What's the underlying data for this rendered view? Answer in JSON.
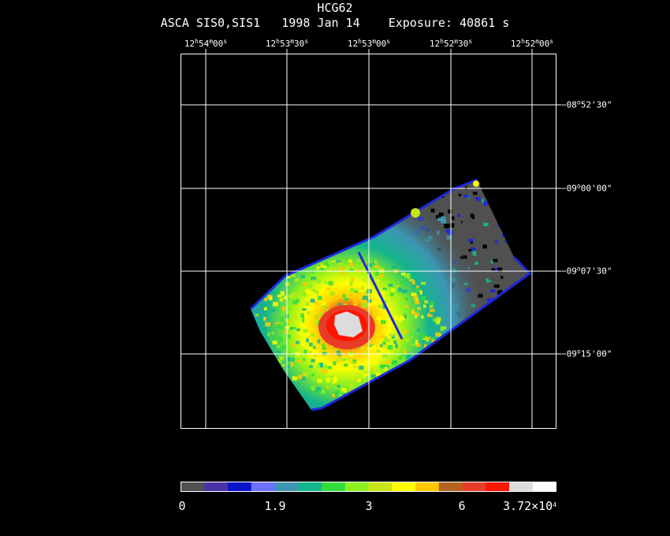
{
  "title": "HCG62",
  "subtitle": "ASCA SIS0,SIS1   1998 Jan 14    Exposure: 40861 s",
  "ra_axis": [
    {
      "h": "12",
      "hs": "h",
      "m": "54",
      "ms": "m",
      "s": "00",
      "ss": "s"
    },
    {
      "h": "12",
      "hs": "h",
      "m": "53",
      "ms": "m",
      "s": "30",
      "ss": "s"
    },
    {
      "h": "12",
      "hs": "h",
      "m": "53",
      "ms": "m",
      "s": "00",
      "ss": "s"
    },
    {
      "h": "12",
      "hs": "h",
      "m": "52",
      "ms": "m",
      "s": "30",
      "ss": "s"
    },
    {
      "h": "12",
      "hs": "h",
      "m": "52",
      "ms": "m",
      "s": "00",
      "ss": "s"
    }
  ],
  "dec_axis": [
    {
      "d": "−08",
      "ds": "o",
      "rest": "52'30\""
    },
    {
      "d": "−09",
      "ds": "o",
      "rest": "00'00\""
    },
    {
      "d": "−09",
      "ds": "o",
      "rest": "07'30\""
    },
    {
      "d": "−09",
      "ds": "o",
      "rest": "15'00\""
    }
  ],
  "colorbar": {
    "colors": [
      "#505050",
      "#4a32a8",
      "#0a14c8",
      "#6e6eff",
      "#3c96b4",
      "#14b48c",
      "#32dc3c",
      "#8cf01e",
      "#c8e614",
      "#ffff00",
      "#ffc800",
      "#b4641e",
      "#e63c28",
      "#ff1400",
      "#dcdcdc",
      "#ffffff"
    ],
    "labels": [
      {
        "text": "0",
        "sup": ""
      },
      {
        "text": "1.9",
        "sup": ""
      },
      {
        "text": "3",
        "sup": ""
      },
      {
        "text": "6",
        "sup": ""
      },
      {
        "text": "3.72×10",
        "sup": "4"
      }
    ]
  },
  "image_colors": {
    "background": "#000000",
    "grid": "#ffffff",
    "frame_edge": "#1e28dc",
    "low": "#505050",
    "core": "#dcdcdc"
  }
}
